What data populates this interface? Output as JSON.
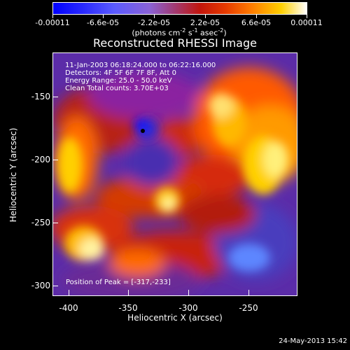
{
  "colorbar": {
    "labels": [
      "-0.00011",
      "-6.6e-05",
      "-2.2e-05",
      "2.2e-05",
      "6.6e-05",
      "0.00011"
    ],
    "units_parts": [
      "(photons cm",
      "-2",
      " s",
      "-1",
      " asec",
      "-2",
      ")"
    ]
  },
  "title": "Reconstructed RHESSI Image",
  "overlay": {
    "line1": "11-Jan-2003 06:18:24.000 to 06:22:16.000",
    "line2": "Detectors: 4F 5F 6F 7F 8F, Att 0",
    "line3": "Energy Range: 25.0 - 50.0 keV",
    "line4": "Clean    Total counts: 3.70E+03"
  },
  "peak_text": "Position of Peak = [-317,-233]",
  "axes": {
    "x_title": "Heliocentric X (arcsec)",
    "y_title": "Heliocentric Y (arcsec)",
    "x_ticks": [
      "-400",
      "-350",
      "-300",
      "-250"
    ],
    "y_ticks": [
      "-150",
      "-200",
      "-250",
      "-300"
    ]
  },
  "footer": "24-May-2013 15:42",
  "colors": {
    "background": "#000000",
    "axis": "#ffffff"
  }
}
